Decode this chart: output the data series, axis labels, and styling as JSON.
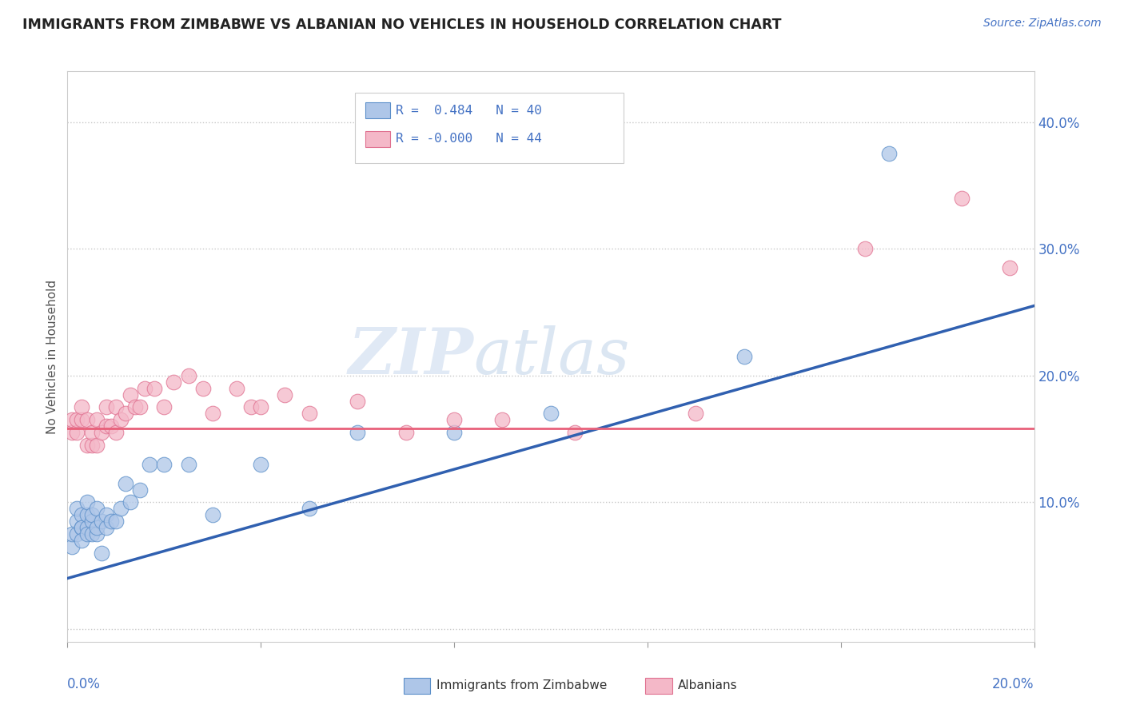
{
  "title": "IMMIGRANTS FROM ZIMBABWE VS ALBANIAN NO VEHICLES IN HOUSEHOLD CORRELATION CHART",
  "source": "Source: ZipAtlas.com",
  "ylabel": "No Vehicles in Household",
  "xlim": [
    0.0,
    0.2
  ],
  "ylim": [
    -0.01,
    0.44
  ],
  "color_blue_fill": "#aec6e8",
  "color_pink_fill": "#f4b8c8",
  "color_blue_edge": "#5b8fc9",
  "color_pink_edge": "#e07090",
  "color_blue_line": "#3060b0",
  "color_pink_line": "#e8607a",
  "color_blue_text": "#4472c4",
  "watermark_color": "#d0e0f0",
  "grid_color": "#c8c8c8",
  "blue_scatter_x": [
    0.001,
    0.001,
    0.002,
    0.002,
    0.002,
    0.003,
    0.003,
    0.003,
    0.003,
    0.004,
    0.004,
    0.004,
    0.004,
    0.005,
    0.005,
    0.005,
    0.006,
    0.006,
    0.006,
    0.007,
    0.007,
    0.008,
    0.008,
    0.009,
    0.01,
    0.011,
    0.012,
    0.013,
    0.015,
    0.017,
    0.02,
    0.025,
    0.03,
    0.04,
    0.05,
    0.06,
    0.08,
    0.1,
    0.14,
    0.17
  ],
  "blue_scatter_y": [
    0.065,
    0.075,
    0.075,
    0.085,
    0.095,
    0.08,
    0.09,
    0.08,
    0.07,
    0.08,
    0.09,
    0.075,
    0.1,
    0.085,
    0.075,
    0.09,
    0.075,
    0.08,
    0.095,
    0.06,
    0.085,
    0.08,
    0.09,
    0.085,
    0.085,
    0.095,
    0.115,
    0.1,
    0.11,
    0.13,
    0.13,
    0.13,
    0.09,
    0.13,
    0.095,
    0.155,
    0.155,
    0.17,
    0.215,
    0.375
  ],
  "pink_scatter_x": [
    0.001,
    0.001,
    0.002,
    0.002,
    0.003,
    0.003,
    0.004,
    0.004,
    0.005,
    0.005,
    0.006,
    0.006,
    0.007,
    0.008,
    0.008,
    0.009,
    0.01,
    0.01,
    0.011,
    0.012,
    0.013,
    0.014,
    0.015,
    0.016,
    0.018,
    0.02,
    0.022,
    0.025,
    0.028,
    0.03,
    0.035,
    0.038,
    0.04,
    0.045,
    0.05,
    0.06,
    0.07,
    0.08,
    0.09,
    0.105,
    0.13,
    0.165,
    0.185,
    0.195
  ],
  "pink_scatter_y": [
    0.155,
    0.165,
    0.155,
    0.165,
    0.165,
    0.175,
    0.145,
    0.165,
    0.145,
    0.155,
    0.145,
    0.165,
    0.155,
    0.16,
    0.175,
    0.16,
    0.155,
    0.175,
    0.165,
    0.17,
    0.185,
    0.175,
    0.175,
    0.19,
    0.19,
    0.175,
    0.195,
    0.2,
    0.19,
    0.17,
    0.19,
    0.175,
    0.175,
    0.185,
    0.17,
    0.18,
    0.155,
    0.165,
    0.165,
    0.155,
    0.17,
    0.3,
    0.34,
    0.285
  ],
  "blue_line_x": [
    0.0,
    0.2
  ],
  "blue_line_y": [
    0.04,
    0.255
  ],
  "pink_line_x": [
    0.0,
    0.2
  ],
  "pink_line_y": [
    0.158,
    0.158
  ],
  "yticks": [
    0.0,
    0.1,
    0.2,
    0.3,
    0.4
  ],
  "ytick_labels": [
    "",
    "10.0%",
    "20.0%",
    "30.0%",
    "40.0%"
  ],
  "background_color": "#ffffff"
}
